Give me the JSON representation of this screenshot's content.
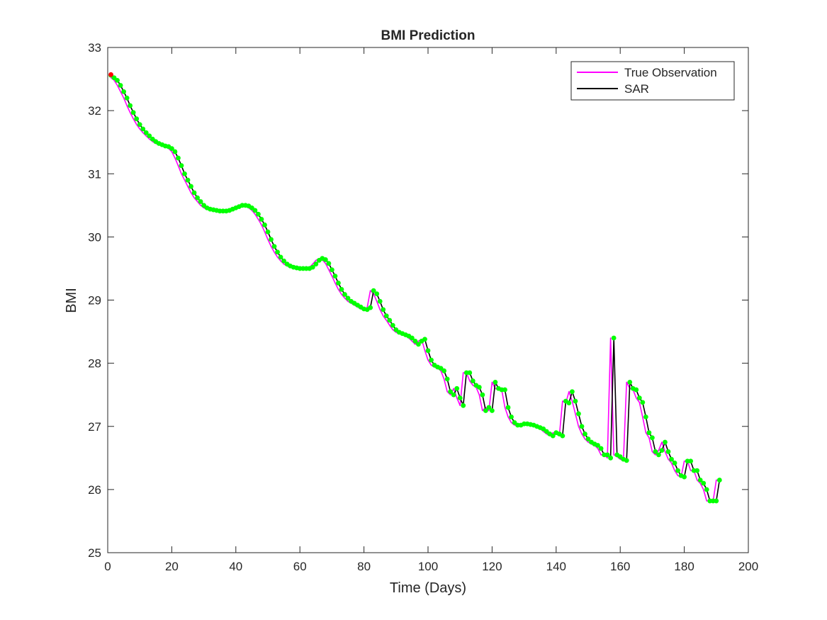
{
  "chart_data": {
    "type": "line",
    "title": "BMI Prediction",
    "x_label": "Time (Days)",
    "y_label": "BMI",
    "xlim": [
      0,
      200
    ],
    "xticks": [
      0,
      20,
      40,
      60,
      80,
      100,
      120,
      140,
      160,
      180,
      200
    ],
    "ylim": [
      25,
      33
    ],
    "yticks": [
      25,
      26,
      27,
      28,
      29,
      30,
      31,
      32,
      33
    ],
    "grid": false,
    "legend_position": "upper right",
    "x": [
      1,
      2,
      3,
      4,
      5,
      6,
      7,
      8,
      9,
      10,
      11,
      12,
      13,
      14,
      15,
      16,
      17,
      18,
      19,
      20,
      21,
      22,
      23,
      24,
      25,
      26,
      27,
      28,
      29,
      30,
      31,
      32,
      33,
      34,
      35,
      36,
      37,
      38,
      39,
      40,
      41,
      42,
      43,
      44,
      45,
      46,
      47,
      48,
      49,
      50,
      51,
      52,
      53,
      54,
      55,
      56,
      57,
      58,
      59,
      60,
      61,
      62,
      63,
      64,
      65,
      66,
      67,
      68,
      69,
      70,
      71,
      72,
      73,
      74,
      75,
      76,
      77,
      78,
      79,
      80,
      81,
      82,
      83,
      84,
      85,
      86,
      87,
      88,
      89,
      90,
      91,
      92,
      93,
      94,
      95,
      96,
      97,
      98,
      99,
      100,
      101,
      102,
      103,
      104,
      105,
      106,
      107,
      108,
      109,
      110,
      111,
      112,
      113,
      114,
      115,
      116,
      117,
      118,
      119,
      120,
      121,
      122,
      123,
      124,
      125,
      126,
      127,
      128,
      129,
      130,
      131,
      132,
      133,
      134,
      135,
      136,
      137,
      138,
      139,
      140,
      141,
      142,
      143,
      144,
      145,
      146,
      147,
      148,
      149,
      150,
      151,
      152,
      153,
      154,
      155,
      156,
      157,
      158,
      159,
      160,
      161,
      162,
      163,
      164,
      165,
      166,
      167,
      168,
      169,
      170,
      171,
      172,
      173,
      174,
      175,
      176,
      177,
      178,
      179,
      180,
      181,
      182,
      183,
      184,
      185,
      186,
      187,
      188,
      189,
      190,
      191
    ],
    "series": [
      {
        "name": "True Observation",
        "color": "#ff00ff",
        "values": [
          32.52,
          32.48,
          32.4,
          32.3,
          32.2,
          32.08,
          31.97,
          31.87,
          31.78,
          31.71,
          31.65,
          31.6,
          31.55,
          31.51,
          31.48,
          31.46,
          31.44,
          31.43,
          31.4,
          31.35,
          31.25,
          31.13,
          31.0,
          30.9,
          30.8,
          30.7,
          30.62,
          30.56,
          30.5,
          30.46,
          30.44,
          30.43,
          30.42,
          30.41,
          30.41,
          30.41,
          30.42,
          30.44,
          30.46,
          30.48,
          30.5,
          30.5,
          30.49,
          30.46,
          30.42,
          30.36,
          30.28,
          30.19,
          30.08,
          29.96,
          29.85,
          29.76,
          29.68,
          29.62,
          29.57,
          29.54,
          29.52,
          29.51,
          29.5,
          29.5,
          29.5,
          29.5,
          29.52,
          29.57,
          29.63,
          29.66,
          29.64,
          29.58,
          29.48,
          29.38,
          29.27,
          29.17,
          29.09,
          29.03,
          28.98,
          28.95,
          28.92,
          28.89,
          28.86,
          28.85,
          28.88,
          29.15,
          29.1,
          28.98,
          28.85,
          28.75,
          28.68,
          28.6,
          28.53,
          28.49,
          28.47,
          28.45,
          28.43,
          28.4,
          28.35,
          28.3,
          28.35,
          28.38,
          28.2,
          28.05,
          27.97,
          27.94,
          27.92,
          27.88,
          27.75,
          27.55,
          27.5,
          27.6,
          27.45,
          27.33,
          27.85,
          27.85,
          27.72,
          27.65,
          27.62,
          27.5,
          27.25,
          27.3,
          27.25,
          27.7,
          27.6,
          27.58,
          27.58,
          27.3,
          27.15,
          27.06,
          27.02,
          27.02,
          27.04,
          27.04,
          27.03,
          27.02,
          27.0,
          26.98,
          26.96,
          26.92,
          26.88,
          26.85,
          26.9,
          26.88,
          26.85,
          27.4,
          27.37,
          27.55,
          27.4,
          27.2,
          27.0,
          26.88,
          26.8,
          26.75,
          26.72,
          26.7,
          26.65,
          26.55,
          26.55,
          26.5,
          28.4,
          26.55,
          26.52,
          26.48,
          26.46,
          27.7,
          27.6,
          27.58,
          27.45,
          27.38,
          27.15,
          26.9,
          26.82,
          26.6,
          26.55,
          26.62,
          26.75,
          26.6,
          26.48,
          26.42,
          26.3,
          26.22,
          26.2,
          26.45,
          26.45,
          26.3,
          26.3,
          26.15,
          26.1,
          26.0,
          25.82,
          25.82,
          25.82,
          26.15,
          26.15
        ]
      },
      {
        "name": "SAR",
        "color": "#000000",
        "marker_color": "#00ff00",
        "values": [
          32.56,
          32.52,
          32.48,
          32.4,
          32.3,
          32.2,
          32.08,
          31.97,
          31.87,
          31.78,
          31.71,
          31.65,
          31.6,
          31.55,
          31.51,
          31.48,
          31.46,
          31.44,
          31.43,
          31.4,
          31.35,
          31.25,
          31.13,
          31.0,
          30.9,
          30.8,
          30.7,
          30.62,
          30.56,
          30.5,
          30.46,
          30.44,
          30.43,
          30.42,
          30.41,
          30.41,
          30.41,
          30.42,
          30.44,
          30.46,
          30.48,
          30.5,
          30.5,
          30.49,
          30.46,
          30.42,
          30.36,
          30.28,
          30.19,
          30.08,
          29.96,
          29.85,
          29.76,
          29.68,
          29.62,
          29.57,
          29.54,
          29.52,
          29.51,
          29.5,
          29.5,
          29.5,
          29.5,
          29.52,
          29.57,
          29.63,
          29.66,
          29.64,
          29.58,
          29.48,
          29.38,
          29.27,
          29.17,
          29.09,
          29.03,
          28.98,
          28.95,
          28.92,
          28.89,
          28.86,
          28.85,
          28.88,
          29.15,
          29.1,
          28.98,
          28.85,
          28.75,
          28.68,
          28.6,
          28.53,
          28.49,
          28.47,
          28.45,
          28.43,
          28.4,
          28.35,
          28.3,
          28.35,
          28.38,
          28.2,
          28.05,
          27.97,
          27.94,
          27.92,
          27.88,
          27.75,
          27.55,
          27.5,
          27.6,
          27.45,
          27.33,
          27.85,
          27.85,
          27.72,
          27.65,
          27.62,
          27.5,
          27.25,
          27.3,
          27.25,
          27.7,
          27.6,
          27.58,
          27.58,
          27.3,
          27.15,
          27.06,
          27.02,
          27.02,
          27.04,
          27.04,
          27.03,
          27.02,
          27.0,
          26.98,
          26.96,
          26.92,
          26.88,
          26.85,
          26.9,
          26.88,
          26.85,
          27.4,
          27.37,
          27.55,
          27.4,
          27.2,
          27.0,
          26.88,
          26.8,
          26.75,
          26.72,
          26.7,
          26.65,
          26.55,
          26.55,
          26.5,
          28.4,
          26.55,
          26.52,
          26.48,
          26.46,
          27.7,
          27.6,
          27.58,
          27.45,
          27.38,
          27.15,
          26.9,
          26.82,
          26.6,
          26.55,
          26.62,
          26.75,
          26.6,
          26.48,
          26.42,
          26.3,
          26.22,
          26.2,
          26.45,
          26.45,
          26.3,
          26.3,
          26.15,
          26.1,
          26.0,
          25.82,
          25.82,
          25.82,
          26.15
        ]
      }
    ],
    "start_marker": {
      "x": 1,
      "y": 32.57,
      "color": "#ff0000"
    }
  }
}
